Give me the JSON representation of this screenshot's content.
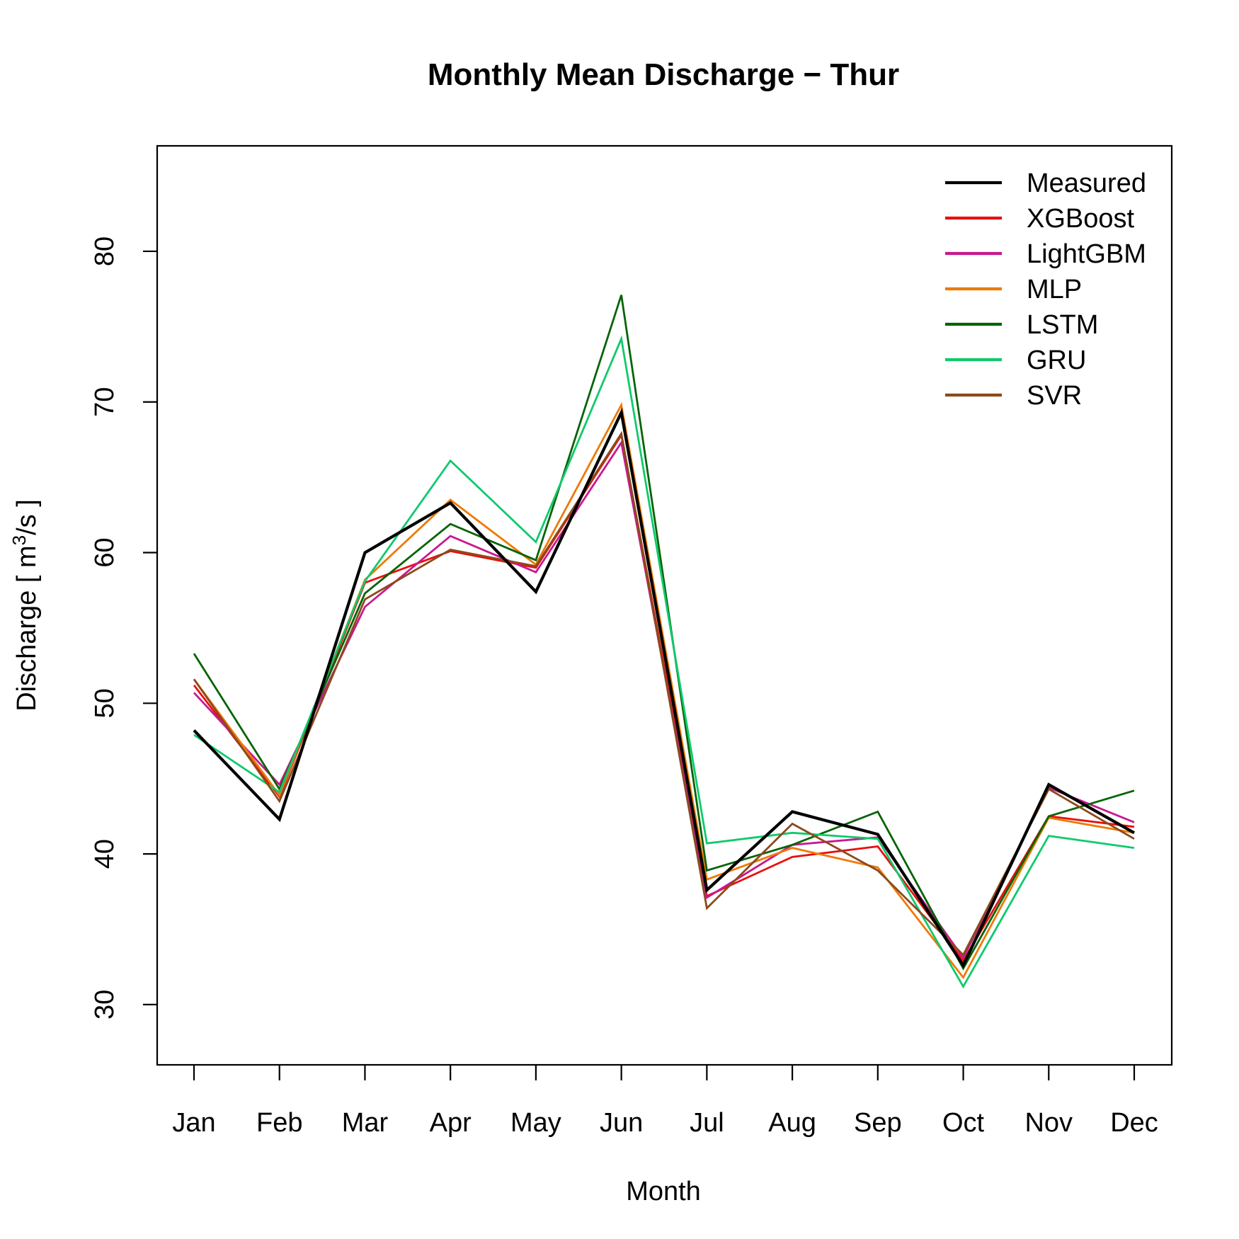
{
  "chart_data": {
    "type": "line",
    "title": "Monthly Mean Discharge − Thur",
    "xlabel": "Month",
    "ylabel": {
      "prefix": "Discharge [ m",
      "superscript": "3",
      "suffix": "/s ]"
    },
    "categories": [
      "Jan",
      "Feb",
      "Mar",
      "Apr",
      "May",
      "Jun",
      "Jul",
      "Aug",
      "Sep",
      "Oct",
      "Nov",
      "Dec"
    ],
    "ylim": [
      26,
      87
    ],
    "yticks": [
      30,
      40,
      50,
      60,
      70,
      80
    ],
    "grid": false,
    "legend_position": "top-right",
    "series": [
      {
        "name": "Measured",
        "color": "#000000",
        "values": [
          48.2,
          42.3,
          60.0,
          63.3,
          57.4,
          69.3,
          37.6,
          42.8,
          41.3,
          32.6,
          44.6,
          41.4
        ]
      },
      {
        "name": "XGBoost",
        "color": "#e8100f",
        "values": [
          51.2,
          43.8,
          58.0,
          60.1,
          59.0,
          67.8,
          37.2,
          39.8,
          40.5,
          32.9,
          42.5,
          41.8
        ]
      },
      {
        "name": "LightGBM",
        "color": "#c8198f",
        "values": [
          50.7,
          44.6,
          56.4,
          61.1,
          58.7,
          67.3,
          37.1,
          40.6,
          41.1,
          33.1,
          44.4,
          42.1
        ]
      },
      {
        "name": "MLP",
        "color": "#ed7a06",
        "values": [
          51.6,
          43.9,
          58.2,
          63.5,
          59.2,
          69.8,
          38.3,
          40.4,
          39.1,
          31.8,
          42.4,
          41.4
        ]
      },
      {
        "name": "LSTM",
        "color": "#066306",
        "values": [
          53.3,
          44.3,
          57.3,
          61.9,
          59.5,
          77.1,
          38.9,
          40.6,
          42.8,
          32.4,
          42.5,
          44.2
        ]
      },
      {
        "name": "GRU",
        "color": "#10c96c",
        "values": [
          47.9,
          44.1,
          58.1,
          66.1,
          60.7,
          74.2,
          40.7,
          41.4,
          41.0,
          31.2,
          41.2,
          40.4
        ]
      },
      {
        "name": "SVR",
        "color": "#8c4a1c",
        "values": [
          51.6,
          43.5,
          56.9,
          60.2,
          59.1,
          67.9,
          36.4,
          42.0,
          38.9,
          33.3,
          44.3,
          41.0
        ]
      }
    ]
  }
}
